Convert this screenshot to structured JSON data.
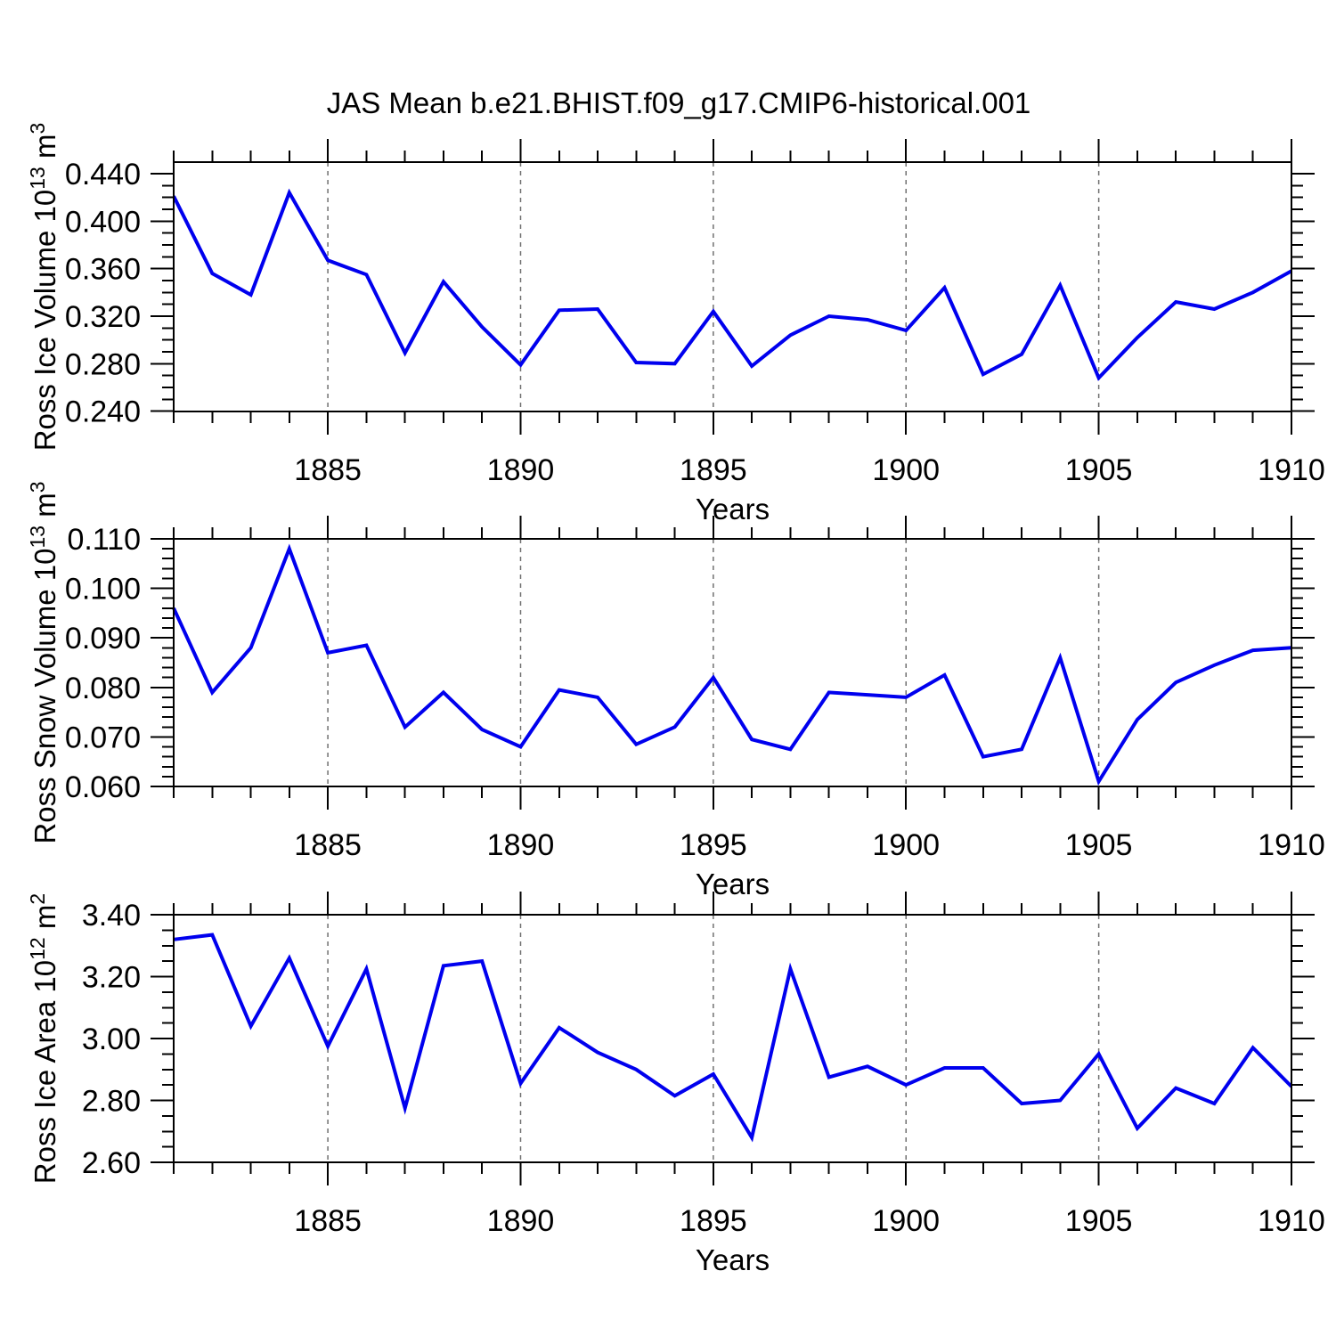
{
  "title": "JAS Mean b.e21.BHIST.f09_g17.CMIP6-historical.001",
  "colors": {
    "line": "#0000ee",
    "grid": "#707070",
    "axis": "#000000",
    "background": "#ffffff"
  },
  "x_axis": {
    "label": "Years",
    "years": [
      1881,
      1882,
      1883,
      1884,
      1885,
      1886,
      1887,
      1888,
      1889,
      1890,
      1891,
      1892,
      1893,
      1894,
      1895,
      1896,
      1897,
      1898,
      1899,
      1900,
      1901,
      1902,
      1903,
      1904,
      1905,
      1906,
      1907,
      1908,
      1909,
      1910
    ],
    "major_tick_years": [
      1885,
      1890,
      1895,
      1900,
      1905,
      1910
    ],
    "major_tick_labels": [
      "1885",
      "1890",
      "1895",
      "1900",
      "1905",
      "1910"
    ],
    "gridline_years": [
      1885,
      1890,
      1895,
      1900,
      1905
    ]
  },
  "chart_data": [
    {
      "type": "line",
      "name": "ross-ice-volume",
      "ylabel": "Ross Ice Volume 10^13 m^3",
      "ylabel_parts": [
        {
          "t": "Ross Ice Volume 10"
        },
        {
          "t": "13",
          "sup": true
        },
        {
          "t": " m"
        },
        {
          "t": "3",
          "sup": true
        }
      ],
      "x": [
        1881,
        1882,
        1883,
        1884,
        1885,
        1886,
        1887,
        1888,
        1889,
        1890,
        1891,
        1892,
        1893,
        1894,
        1895,
        1896,
        1897,
        1898,
        1899,
        1900,
        1901,
        1902,
        1903,
        1904,
        1905,
        1906,
        1907,
        1908,
        1909,
        1910
      ],
      "values": [
        0.421,
        0.356,
        0.338,
        0.424,
        0.367,
        0.355,
        0.289,
        0.349,
        0.311,
        0.279,
        0.325,
        0.326,
        0.281,
        0.28,
        0.324,
        0.278,
        0.304,
        0.32,
        0.317,
        0.308,
        0.344,
        0.271,
        0.288,
        0.346,
        0.268,
        0.302,
        0.332,
        0.326,
        0.34,
        0.358
      ],
      "ylim": [
        0.23975,
        0.44975
      ],
      "yticks": [
        0.24,
        0.28,
        0.32,
        0.36,
        0.4,
        0.44
      ],
      "ytick_decimals": 3,
      "y_minor_step": 0.01,
      "xlabel": "Years"
    },
    {
      "type": "line",
      "name": "ross-snow-volume",
      "ylabel": "Ross Snow Volume 10^13 m^3",
      "ylabel_parts": [
        {
          "t": "Ross Snow Volume 10"
        },
        {
          "t": "13",
          "sup": true
        },
        {
          "t": " m"
        },
        {
          "t": "3",
          "sup": true
        }
      ],
      "x": [
        1881,
        1882,
        1883,
        1884,
        1885,
        1886,
        1887,
        1888,
        1889,
        1890,
        1891,
        1892,
        1893,
        1894,
        1895,
        1896,
        1897,
        1898,
        1899,
        1900,
        1901,
        1902,
        1903,
        1904,
        1905,
        1906,
        1907,
        1908,
        1909,
        1910
      ],
      "values": [
        0.096,
        0.079,
        0.088,
        0.108,
        0.087,
        0.0885,
        0.072,
        0.079,
        0.0715,
        0.068,
        0.0795,
        0.078,
        0.0685,
        0.072,
        0.082,
        0.0695,
        0.0675,
        0.079,
        0.0785,
        0.078,
        0.0825,
        0.066,
        0.0675,
        0.086,
        0.061,
        0.0735,
        0.081,
        0.0845,
        0.0875,
        0.088
      ],
      "ylim": [
        0.06,
        0.11
      ],
      "yticks": [
        0.06,
        0.07,
        0.08,
        0.09,
        0.1,
        0.11
      ],
      "ytick_decimals": 3,
      "y_minor_step": 0.002,
      "xlabel": "Years"
    },
    {
      "type": "line",
      "name": "ross-ice-area",
      "ylabel": "Ross Ice Area 10^12 m^2",
      "ylabel_parts": [
        {
          "t": "Ross Ice Area 10"
        },
        {
          "t": "12",
          "sup": true
        },
        {
          "t": " m"
        },
        {
          "t": "2",
          "sup": true
        }
      ],
      "x": [
        1881,
        1882,
        1883,
        1884,
        1885,
        1886,
        1887,
        1888,
        1889,
        1890,
        1891,
        1892,
        1893,
        1894,
        1895,
        1896,
        1897,
        1898,
        1899,
        1900,
        1901,
        1902,
        1903,
        1904,
        1905,
        1906,
        1907,
        1908,
        1909,
        1910
      ],
      "values": [
        3.32,
        3.335,
        3.04,
        3.26,
        2.975,
        3.225,
        2.775,
        3.235,
        3.25,
        2.855,
        3.035,
        2.955,
        2.9,
        2.815,
        2.885,
        2.68,
        3.225,
        2.875,
        2.91,
        2.85,
        2.905,
        2.905,
        2.79,
        2.8,
        2.95,
        2.71,
        2.84,
        2.79,
        2.97,
        2.845
      ],
      "ylim": [
        2.6,
        3.4
      ],
      "yticks": [
        2.6,
        2.8,
        3.0,
        3.2,
        3.4
      ],
      "ytick_decimals": 2,
      "y_minor_step": 0.05,
      "xlabel": "Years"
    }
  ]
}
